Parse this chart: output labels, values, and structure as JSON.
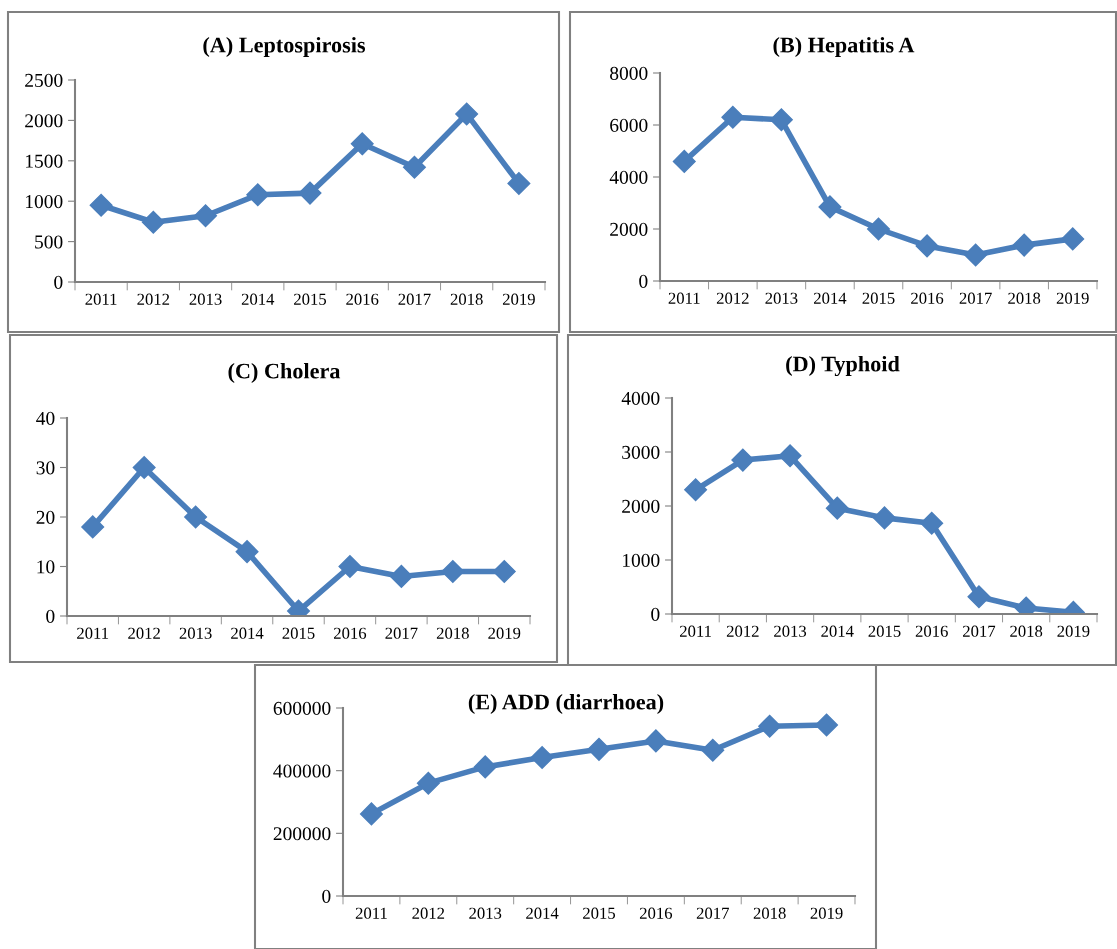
{
  "chart_data": [
    {
      "type": "line",
      "title": "(A) Leptospirosis",
      "categories": [
        "2011",
        "2012",
        "2013",
        "2014",
        "2015",
        "2016",
        "2017",
        "2018",
        "2019"
      ],
      "series": [
        {
          "color": "#4a7ebb",
          "values": [
            950,
            740,
            820,
            1080,
            1100,
            1710,
            1420,
            2080,
            1220
          ]
        }
      ],
      "ylim": [
        0,
        2500
      ],
      "yticks": [
        0,
        500,
        1000,
        1500,
        2000,
        2500
      ],
      "marker": "diamond",
      "line_style": "solid",
      "grid": false,
      "legend": false
    },
    {
      "type": "line",
      "title": "(B) Hepatitis A",
      "categories": [
        "2011",
        "2012",
        "2013",
        "2014",
        "2015",
        "2016",
        "2017",
        "2018",
        "2019"
      ],
      "series": [
        {
          "color": "#4a7ebb",
          "values": [
            4600,
            6300,
            6200,
            2850,
            2000,
            1350,
            1000,
            1380,
            1620
          ]
        }
      ],
      "ylim": [
        0,
        8000
      ],
      "yticks": [
        0,
        2000,
        4000,
        6000,
        8000
      ],
      "marker": "diamond",
      "line_style": "solid",
      "grid": false,
      "legend": false
    },
    {
      "type": "line",
      "title": "(C) Cholera",
      "categories": [
        "2011",
        "2012",
        "2013",
        "2014",
        "2015",
        "2016",
        "2017",
        "2018",
        "2019"
      ],
      "series": [
        {
          "color": "#4a7ebb",
          "values": [
            18,
            30,
            20,
            13,
            1,
            10,
            8,
            9,
            9
          ]
        }
      ],
      "ylim": [
        0,
        40
      ],
      "yticks": [
        0,
        10,
        20,
        30,
        40
      ],
      "marker": "diamond",
      "line_style": "solid",
      "grid": false,
      "legend": false
    },
    {
      "type": "line",
      "title": "(D) Typhoid",
      "categories": [
        "2011",
        "2012",
        "2013",
        "2014",
        "2015",
        "2016",
        "2017",
        "2018",
        "2019"
      ],
      "series": [
        {
          "color": "#4a7ebb",
          "values": [
            2300,
            2850,
            2930,
            1960,
            1780,
            1680,
            320,
            110,
            30
          ]
        }
      ],
      "ylim": [
        0,
        4000
      ],
      "yticks": [
        0,
        1000,
        2000,
        3000,
        4000
      ],
      "marker": "diamond",
      "line_style": "solid",
      "grid": false,
      "legend": false
    },
    {
      "type": "line",
      "title": "(E) ADD (diarrhoea)",
      "categories": [
        "2011",
        "2012",
        "2013",
        "2014",
        "2015",
        "2016",
        "2017",
        "2018",
        "2019"
      ],
      "series": [
        {
          "color": "#4a7ebb",
          "values": [
            262000,
            360000,
            412000,
            442000,
            468000,
            495000,
            465000,
            542000,
            546000
          ]
        }
      ],
      "ylim": [
        0,
        600000
      ],
      "yticks": [
        0,
        200000,
        400000,
        600000
      ],
      "marker": "diamond",
      "line_style": "solid",
      "grid": false,
      "legend": false
    }
  ]
}
